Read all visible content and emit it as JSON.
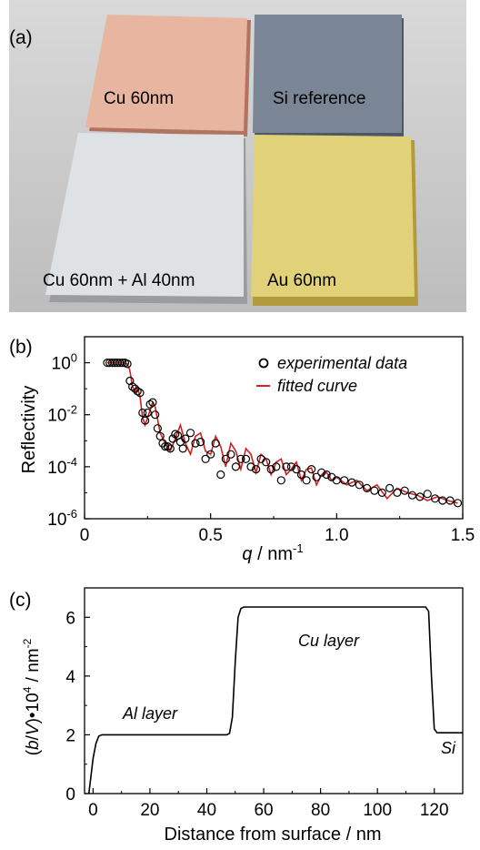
{
  "panel_a": {
    "label": "(a)",
    "samples": [
      {
        "label": "Cu 60nm",
        "color": "#e8b5a0"
      },
      {
        "label": "Si reference",
        "color": "#7a8696"
      },
      {
        "label": "Cu 60nm + Al 40nm",
        "color": "#dfe2e4"
      },
      {
        "label": "Au 60nm",
        "color": "#e1d27a"
      }
    ]
  },
  "panel_b": {
    "label": "(b)",
    "legend": {
      "experimental": "experimental data",
      "fitted": "fitted curve"
    }
  },
  "panel_c": {
    "label": "(c)",
    "annotations": {
      "al": "Al layer",
      "cu": "Cu layer",
      "si": "Si"
    }
  },
  "chart_data": [
    {
      "type": "scatter",
      "ylabel": "Reflectivity",
      "xlabel": "q / nm-1",
      "xlim": [
        0,
        1.5
      ],
      "ylim_log10": [
        -6,
        1
      ],
      "xticks": [
        "0",
        "0.5",
        "1.0",
        "1.5"
      ],
      "yticks": [
        "10^0",
        "10^-2",
        "10^-4",
        "10^-6"
      ],
      "series": [
        {
          "name": "experimental data",
          "marker": "open-circle",
          "x": [
            0.09,
            0.1,
            0.11,
            0.12,
            0.13,
            0.14,
            0.15,
            0.16,
            0.17,
            0.18,
            0.19,
            0.2,
            0.21,
            0.22,
            0.23,
            0.24,
            0.25,
            0.26,
            0.27,
            0.28,
            0.29,
            0.3,
            0.31,
            0.32,
            0.33,
            0.34,
            0.35,
            0.36,
            0.37,
            0.38,
            0.39,
            0.4,
            0.42,
            0.44,
            0.46,
            0.48,
            0.5,
            0.52,
            0.54,
            0.56,
            0.58,
            0.6,
            0.62,
            0.64,
            0.66,
            0.68,
            0.7,
            0.72,
            0.74,
            0.76,
            0.78,
            0.8,
            0.82,
            0.84,
            0.86,
            0.88,
            0.9,
            0.92,
            0.94,
            0.96,
            0.98,
            1.0,
            1.03,
            1.06,
            1.09,
            1.12,
            1.15,
            1.18,
            1.21,
            1.24,
            1.27,
            1.3,
            1.33,
            1.36,
            1.39,
            1.42,
            1.45,
            1.48
          ],
          "y": [
            1,
            1,
            1,
            1,
            1,
            1,
            1,
            1,
            0.9,
            0.2,
            0.12,
            0.1,
            0.08,
            0.07,
            0.012,
            0.006,
            0.012,
            0.025,
            0.03,
            0.01,
            0.003,
            0.0015,
            0.0008,
            0.0006,
            0.0006,
            0.0005,
            0.0012,
            0.0018,
            0.0016,
            0.0009,
            0.0005,
            0.0012,
            0.002,
            0.0008,
            0.0009,
            0.0002,
            0.0003,
            0.0008,
            5e-05,
            0.0002,
            0.0003,
            0.0001,
            0.0002,
            0.0002,
            0.0001,
            8e-05,
            0.0002,
            0.00015,
            8e-05,
            0.0001,
            3e-05,
            0.0001,
            0.0001,
            8e-05,
            5e-05,
            3e-05,
            8e-05,
            4e-05,
            6e-05,
            5e-05,
            4e-05,
            3e-05,
            3e-05,
            2.5e-05,
            2e-05,
            1.5e-05,
            1.2e-05,
            1e-05,
            1.5e-05,
            1e-05,
            1.2e-05,
            8e-06,
            7e-06,
            9e-06,
            6e-06,
            5e-06,
            5e-06,
            4e-06
          ]
        },
        {
          "name": "fitted curve",
          "color": "#d42020",
          "x": [
            0.09,
            0.15,
            0.17,
            0.18,
            0.19,
            0.2,
            0.21,
            0.22,
            0.23,
            0.24,
            0.26,
            0.27,
            0.28,
            0.3,
            0.32,
            0.34,
            0.36,
            0.38,
            0.4,
            0.42,
            0.44,
            0.46,
            0.48,
            0.5,
            0.52,
            0.54,
            0.56,
            0.58,
            0.6,
            0.62,
            0.64,
            0.66,
            0.68,
            0.7,
            0.72,
            0.74,
            0.76,
            0.78,
            0.8,
            0.82,
            0.84,
            0.86,
            0.88,
            0.9,
            0.92,
            0.94,
            0.96,
            0.98,
            1.0,
            1.04,
            1.08,
            1.12,
            1.16,
            1.2,
            1.24,
            1.28,
            1.32,
            1.36,
            1.4,
            1.44,
            1.48
          ],
          "y": [
            1,
            1,
            0.9,
            0.5,
            0.12,
            0.08,
            0.11,
            0.05,
            0.008,
            0.004,
            0.015,
            0.03,
            0.02,
            0.002,
            0.0008,
            0.0004,
            0.0012,
            0.004,
            0.0008,
            0.0003,
            0.0015,
            0.002,
            0.0004,
            0.0003,
            0.0015,
            0.0006,
            0.0001,
            0.0008,
            0.0004,
            8e-05,
            0.0005,
            0.0003,
            6e-05,
            0.0003,
            0.0002,
            5e-05,
            0.00015,
            0.0002,
            5e-05,
            8e-05,
            0.00015,
            3e-05,
            8e-05,
            9e-05,
            2e-05,
            5e-05,
            6e-05,
            3e-05,
            4e-05,
            2e-05,
            3e-05,
            1.2e-05,
            2e-05,
            6e-06,
            1.5e-05,
            1e-05,
            8e-06,
            5e-06,
            7e-06,
            5e-06,
            4e-06
          ]
        }
      ]
    },
    {
      "type": "line",
      "ylabel": "(b/V)•10^4 / nm^-2",
      "xlabel": "Distance from surface / nm",
      "xlim": [
        -3,
        130
      ],
      "ylim": [
        0,
        7
      ],
      "xticks": [
        0,
        20,
        40,
        60,
        80,
        100,
        120
      ],
      "yticks": [
        0,
        2,
        4,
        6
      ],
      "series": [
        {
          "x": [
            -1.5,
            -1,
            0,
            1,
            2,
            3,
            47,
            48,
            49,
            50,
            51,
            52,
            53,
            117,
            118,
            119,
            120,
            121,
            130
          ],
          "y": [
            0,
            0.4,
            1.2,
            1.7,
            1.95,
            2.0,
            2.0,
            2.05,
            2.6,
            4.5,
            6.0,
            6.3,
            6.35,
            6.35,
            6.2,
            4.0,
            2.2,
            2.07,
            2.07
          ]
        }
      ]
    }
  ]
}
